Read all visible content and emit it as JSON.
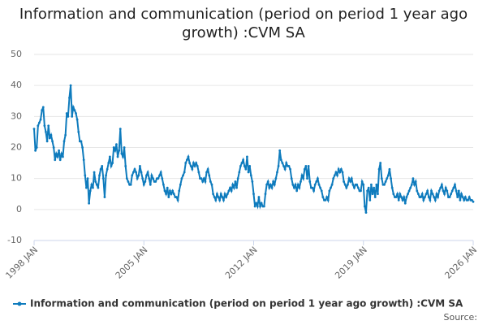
{
  "chart_data": {
    "type": "line",
    "title": "Information and communication (period on period 1 year ago growth) :CVM SA",
    "source": "Source:",
    "categories": [
      "1998 JAN",
      null,
      null,
      null,
      null,
      null,
      null,
      null,
      null,
      null,
      null,
      null,
      null,
      null,
      null,
      null,
      null,
      null,
      null,
      null,
      null,
      null,
      null,
      null,
      null,
      null,
      null,
      null,
      null,
      null,
      null,
      null,
      null,
      null,
      null,
      null,
      null,
      null,
      null,
      null,
      null,
      null,
      null,
      null,
      null,
      null,
      null,
      null,
      null,
      null,
      null,
      null,
      null,
      null,
      null,
      null,
      null,
      null,
      null,
      null,
      null,
      null,
      null,
      null,
      null,
      null,
      null,
      null,
      null,
      null,
      null,
      null,
      null,
      null,
      null,
      null,
      null,
      null,
      null,
      null,
      null,
      null,
      null,
      null,
      "2005 JAN",
      null,
      null,
      null,
      null,
      null,
      null,
      null,
      null,
      null,
      null,
      null,
      null,
      null,
      null,
      null,
      null,
      null,
      null,
      null,
      null,
      null,
      null,
      null,
      null,
      null,
      null,
      null,
      null,
      null,
      null,
      null,
      null,
      null,
      null,
      null,
      null,
      null,
      null,
      null,
      null,
      null,
      null,
      null,
      null,
      null,
      null,
      null,
      null,
      null,
      null,
      null,
      null,
      null,
      null,
      null,
      null,
      null,
      null,
      null,
      null,
      null,
      null,
      null,
      null,
      null,
      null,
      null,
      null,
      null,
      null,
      null,
      null,
      null,
      null,
      null,
      null,
      null,
      null,
      null,
      null,
      null,
      null,
      null,
      "2012 JAN",
      null,
      null,
      null,
      null,
      null,
      null,
      null,
      null,
      null,
      null,
      null,
      null,
      null,
      null,
      null,
      null,
      null,
      null,
      null,
      null,
      null,
      null,
      null,
      null,
      null,
      null,
      null,
      null,
      null,
      null,
      null,
      null,
      null,
      null,
      null,
      null,
      null,
      null,
      null,
      null,
      null,
      null,
      null,
      null,
      null,
      null,
      null,
      null,
      null,
      null,
      null,
      null,
      null,
      null,
      null,
      null,
      null,
      null,
      null,
      null,
      null,
      null,
      null,
      null,
      null,
      null,
      null,
      null,
      null,
      null,
      null,
      null,
      null,
      null,
      null,
      null,
      null,
      null,
      null,
      null,
      null,
      null,
      null,
      "2019 JAN",
      null,
      null,
      null,
      null,
      null,
      null,
      null,
      null,
      null,
      null,
      null,
      null,
      null,
      null,
      null,
      null,
      null,
      null,
      null,
      null,
      null,
      null,
      null,
      null,
      null,
      null,
      null,
      null,
      null,
      null,
      null,
      null,
      null,
      null,
      null,
      null,
      null,
      null,
      null,
      null,
      null,
      null,
      null,
      null,
      null,
      null,
      null,
      null,
      null,
      null,
      null,
      null,
      null,
      null,
      null,
      null,
      null,
      null,
      null,
      null,
      null,
      null,
      null,
      null,
      null,
      null,
      null,
      null,
      null,
      null,
      null,
      null,
      null,
      null,
      null,
      null,
      null,
      null,
      null,
      null,
      null,
      null,
      null,
      "2026 JAN"
    ],
    "series": [
      {
        "name": "Information and communication (period on period 1 year ago growth) :CVM SA",
        "color": "#0e7bbd",
        "values": [
          26,
          19,
          20,
          27,
          28,
          29,
          32,
          33,
          27,
          25,
          22,
          27,
          23,
          24,
          22,
          20,
          16,
          18,
          17,
          19,
          16,
          18,
          17,
          22,
          24,
          31,
          30,
          36,
          40,
          30,
          33,
          32,
          31,
          29,
          25,
          22,
          22,
          20,
          16,
          11,
          7,
          10,
          2,
          6,
          8,
          7,
          12,
          9,
          8,
          7,
          11,
          13,
          14,
          10,
          4,
          11,
          13,
          15,
          17,
          14,
          15,
          20,
          19,
          21,
          17,
          19,
          26,
          18,
          17,
          20,
          14,
          10,
          9,
          8,
          8,
          11,
          12,
          13,
          12,
          10,
          11,
          14,
          12,
          10,
          8,
          9,
          11,
          12,
          10,
          8,
          11,
          10,
          9,
          9,
          10,
          10,
          11,
          12,
          10,
          8,
          6,
          5,
          7,
          4,
          6,
          5,
          6,
          5,
          4,
          4,
          3,
          6,
          8,
          10,
          11,
          12,
          15,
          16,
          17,
          15,
          14,
          13,
          15,
          14,
          15,
          14,
          12,
          10,
          10,
          9,
          10,
          9,
          12,
          13,
          11,
          9,
          8,
          5,
          4,
          3,
          5,
          4,
          3,
          5,
          4,
          3,
          5,
          4,
          5,
          6,
          7,
          6,
          8,
          7,
          9,
          7,
          10,
          12,
          14,
          15,
          16,
          14,
          13,
          17,
          12,
          14,
          11,
          9,
          5,
          1,
          2,
          1,
          4,
          1,
          2,
          1,
          1,
          5,
          8,
          9,
          7,
          8,
          7,
          9,
          8,
          10,
          12,
          14,
          19,
          16,
          15,
          14,
          13,
          15,
          14,
          14,
          13,
          10,
          8,
          7,
          8,
          6,
          8,
          7,
          9,
          11,
          10,
          13,
          14,
          10,
          14,
          9,
          7,
          7,
          6,
          8,
          9,
          10,
          8,
          7,
          6,
          4,
          3,
          3,
          4,
          3,
          6,
          7,
          8,
          10,
          11,
          12,
          11,
          13,
          12,
          13,
          12,
          9,
          8,
          7,
          8,
          10,
          9,
          10,
          8,
          7,
          8,
          8,
          7,
          6,
          6,
          9,
          8,
          1,
          -1,
          6,
          7,
          3,
          8,
          5,
          7,
          4,
          8,
          5,
          13,
          15,
          10,
          8,
          8,
          9,
          10,
          11,
          13,
          10,
          7,
          5,
          4,
          4,
          5,
          3,
          5,
          4,
          3,
          4,
          2,
          4,
          5,
          6,
          7,
          8,
          10,
          8,
          9,
          6,
          5,
          4,
          4,
          5,
          3,
          4,
          5,
          6,
          4,
          3,
          6,
          5,
          4,
          3,
          5,
          4,
          6,
          7,
          8,
          6,
          5,
          7,
          6,
          4,
          4,
          5,
          6,
          7,
          8,
          6,
          4,
          6,
          3,
          5,
          4,
          3,
          4,
          3,
          3,
          4,
          3,
          3,
          2.5
        ]
      }
    ],
    "ylim": [
      -10,
      50
    ],
    "yticks": [
      -10,
      0,
      10,
      20,
      30,
      40,
      50
    ],
    "grid": true
  }
}
